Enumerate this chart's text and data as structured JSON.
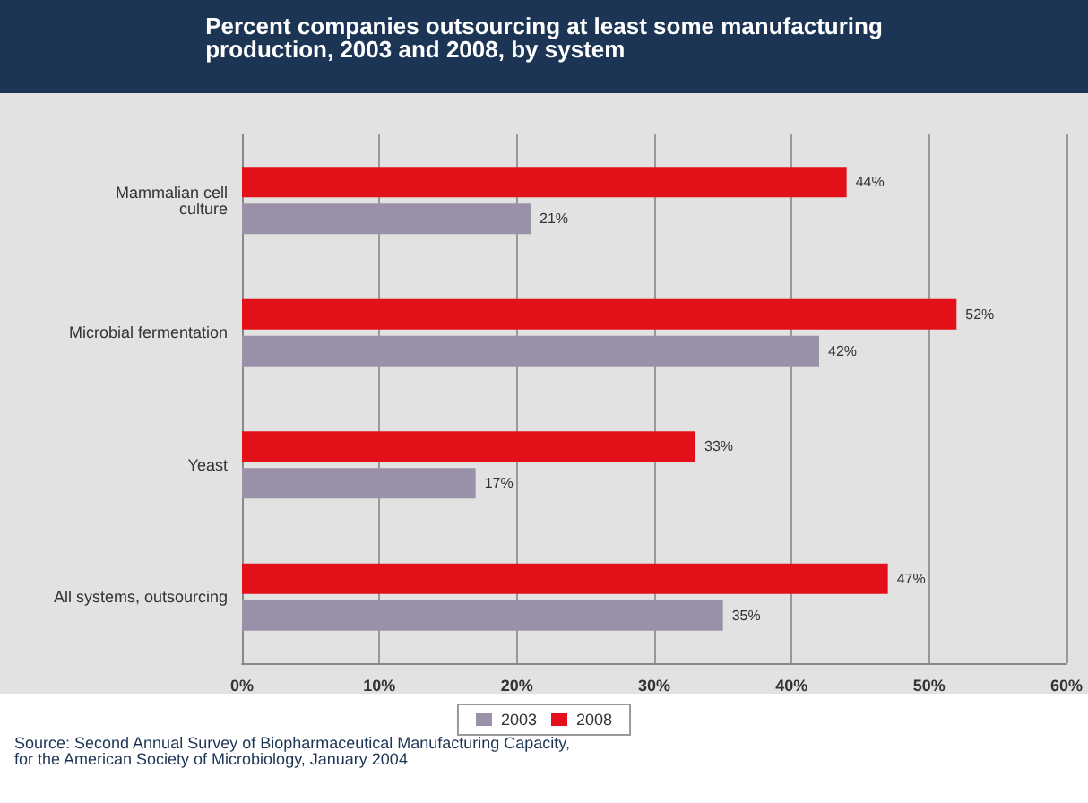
{
  "chart_data": {
    "type": "bar",
    "orientation": "horizontal",
    "title": "Percent companies outsourcing at least some manufacturing\nproduction, 2003 and 2008, by system",
    "categories": [
      "Mammalian cell\nculture",
      "Microbial fermentation",
      "Yeast",
      "All systems, outsourcing"
    ],
    "series": [
      {
        "name": "2003",
        "color": "#9a90a8",
        "values": [
          21,
          42,
          17,
          35
        ],
        "value_labels": [
          "21%",
          "42%",
          "17%",
          "35%"
        ]
      },
      {
        "name": "2008",
        "color": "#e3101a",
        "values": [
          44,
          52,
          33,
          47
        ],
        "value_labels": [
          "44%",
          "52%",
          "33%",
          "47%"
        ]
      }
    ],
    "xlim": [
      0,
      60
    ],
    "xticks": [
      {
        "value": 0,
        "label": "0%"
      },
      {
        "value": 10,
        "label": "10%"
      },
      {
        "value": 20,
        "label": "20%"
      },
      {
        "value": 30,
        "label": "30%"
      },
      {
        "value": 40,
        "label": "40%"
      },
      {
        "value": 50,
        "label": "50%"
      },
      {
        "value": 60,
        "label": "60%"
      }
    ],
    "grid": "x",
    "legend": "bottom",
    "annotations": [
      "Source: Second Annual Survey of Biopharmaceutical Manufacturing Capacity,\nfor the American Society of Microbiology, January 2004"
    ]
  }
}
